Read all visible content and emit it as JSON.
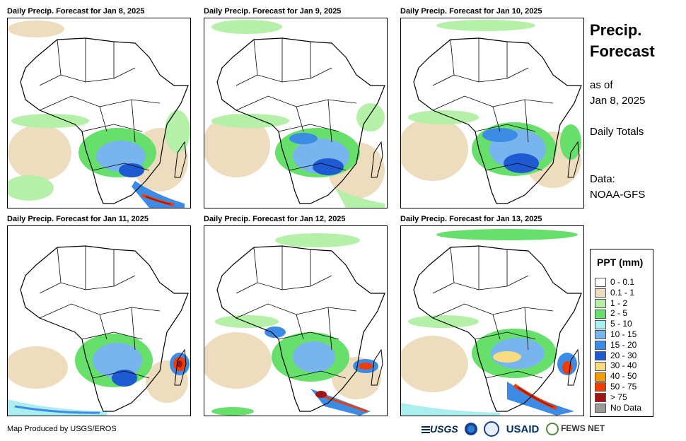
{
  "panels": [
    {
      "title": "Daily Precip. Forecast for Jan 8, 2025"
    },
    {
      "title": "Daily Precip. Forecast for Jan 9, 2025"
    },
    {
      "title": "Daily Precip. Forecast for Jan 10, 2025"
    },
    {
      "title": "Daily Precip. Forecast for Jan 11, 2025"
    },
    {
      "title": "Daily Precip. Forecast for Jan 12, 2025"
    },
    {
      "title": "Daily Precip. Forecast for Jan 13, 2025"
    }
  ],
  "sidebar": {
    "heading_line1": "Precip.",
    "heading_line2": "Forecast",
    "as_of_label": "as of",
    "as_of_date": "Jan 8, 2025",
    "totals_label": "Daily Totals",
    "data_label": "Data:",
    "data_source": "NOAA-GFS"
  },
  "legend": {
    "title": "PPT (mm)",
    "items": [
      {
        "label": "0 - 0.1",
        "color": "#ffffff"
      },
      {
        "label": "0.1 - 1",
        "color": "#eedcbe"
      },
      {
        "label": "1 - 2",
        "color": "#b4f0a8"
      },
      {
        "label": "2 - 5",
        "color": "#66e06a"
      },
      {
        "label": "5 - 10",
        "color": "#aaeef0"
      },
      {
        "label": "10 - 15",
        "color": "#78b4ee"
      },
      {
        "label": "15 - 20",
        "color": "#3c8ce6"
      },
      {
        "label": "20 - 30",
        "color": "#1e5ad2"
      },
      {
        "label": "30 - 40",
        "color": "#f8dc82"
      },
      {
        "label": "40 - 50",
        "color": "#f59a00"
      },
      {
        "label": "50 - 75",
        "color": "#f03c00"
      },
      {
        "label": "> 75",
        "color": "#a01414"
      },
      {
        "label": "No Data",
        "color": "#9a9a9a"
      }
    ]
  },
  "footer": {
    "credit": "Map Produced by USGS/EROS",
    "logo_usgs": "USGS",
    "logo_usaid": "USAID",
    "logo_fews": "FEWS NET"
  }
}
